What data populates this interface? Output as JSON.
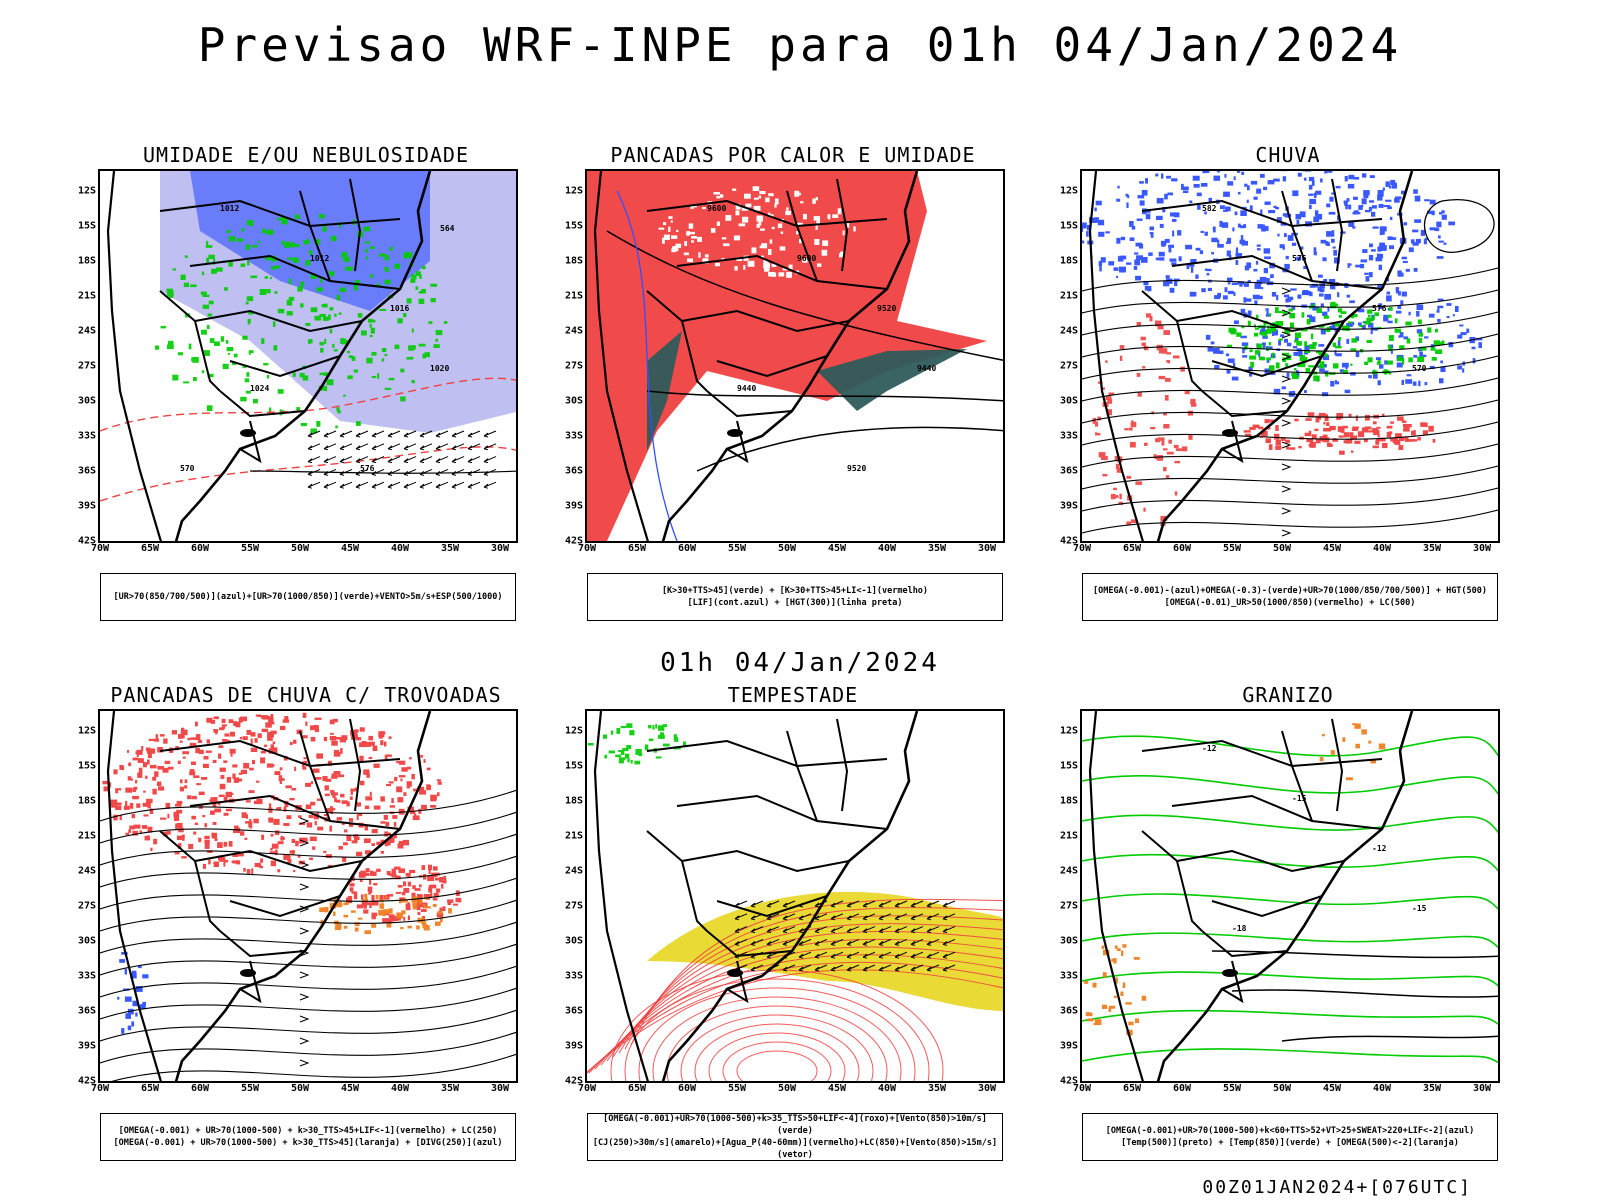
{
  "header": {
    "title": "Previsao WRF-INPE  para 01h 04/Jan/2024"
  },
  "mid_date": "01h 04/Jan/2024",
  "footer": {
    "stamp": "00Z01JAN2024+[076UTC]"
  },
  "axes": {
    "lat_ticks": [
      "12S",
      "15S",
      "18S",
      "21S",
      "24S",
      "27S",
      "30S",
      "33S",
      "36S",
      "39S",
      "42S"
    ],
    "lon_ticks": [
      "70W",
      "65W",
      "60W",
      "55W",
      "50W",
      "45W",
      "40W",
      "35W",
      "30W"
    ]
  },
  "colors": {
    "red": "#f04040",
    "green": "#00cc00",
    "blue": "#3050ff",
    "lightblue": "#b8b8f0",
    "darkteal": "#2f5b5b",
    "yellow": "#e8d82a",
    "orange": "#f08020",
    "black": "#000000"
  },
  "panels": [
    {
      "id": "umidade",
      "title": "UMIDADE E/OU NEBULOSIDADE",
      "legend": [
        "[UR>70(850/700/500)](azul)+[UR>70(1000/850)](verde)+VENTO>5m/s+ESP(500/1000)"
      ],
      "contour_labels": [
        "1012",
        "1012",
        "1016",
        "1020",
        "1024",
        "576",
        "570",
        "564"
      ]
    },
    {
      "id": "pancadas-calor",
      "title": "PANCADAS POR CALOR E UMIDADE",
      "legend": [
        "[K>30+TTS>45](verde) + [K>30+TTS>45+LI<-1](vermelho)",
        "[LIF](cont.azul) + [HGT(300)](linha preta)"
      ],
      "contour_labels": [
        "9600",
        "9600",
        "9520",
        "9440",
        "9440",
        "9520"
      ]
    },
    {
      "id": "chuva",
      "title": "CHUVA",
      "legend": [
        "[OMEGA(-0.001)-(azul)+OMEGA(-0.3)-(verde)+UR>70(1000/850/700/500)] + HGT(500)",
        "[OMEGA(-0.01)_UR>50(1000/850)(vermelho) + LC(500)"
      ],
      "contour_labels": [
        "582",
        "576",
        "576",
        "570"
      ]
    },
    {
      "id": "pancadas-trovoadas",
      "title": "PANCADAS DE CHUVA C/ TROVOADAS",
      "legend": [
        "[OMEGA(-0.001) + UR>70(1000-500) + k>30_TTS>45+LIF<-1](vermelho) + LC(250)",
        "[OMEGA(-0.001) + UR>70(1000-500) + k>30_TTS>45](laranja) + [DIVG(250)](azul)"
      ],
      "contour_labels": []
    },
    {
      "id": "tempestade",
      "title": "TEMPESTADE",
      "legend": [
        "[OMEGA(-0.001)+UR>70(1000-500)+k>35_TTS>50+LIF<-4](roxo)+[Vento(850)>10m/s](verde)",
        "[CJ(250)>30m/s](amarelo)+[Agua_P(40-60mm)](vermelho)+LC(850)+[Vento(850)>15m/s](vetor)"
      ],
      "contour_labels": []
    },
    {
      "id": "granizo",
      "title": "GRANIZO",
      "legend": [
        "[OMEGA(-0.001)+UR>70(1000-500)+k<60+TTS>52+VT>25+SWEAT>220+LIF<-2](azul)",
        "[Temp(500)](preto) + [Temp(850)](verde) + [OMEGA(500)<-2](laranja)"
      ],
      "contour_labels": [
        "-12",
        "-15",
        "-12",
        "-15",
        "-18"
      ]
    }
  ]
}
